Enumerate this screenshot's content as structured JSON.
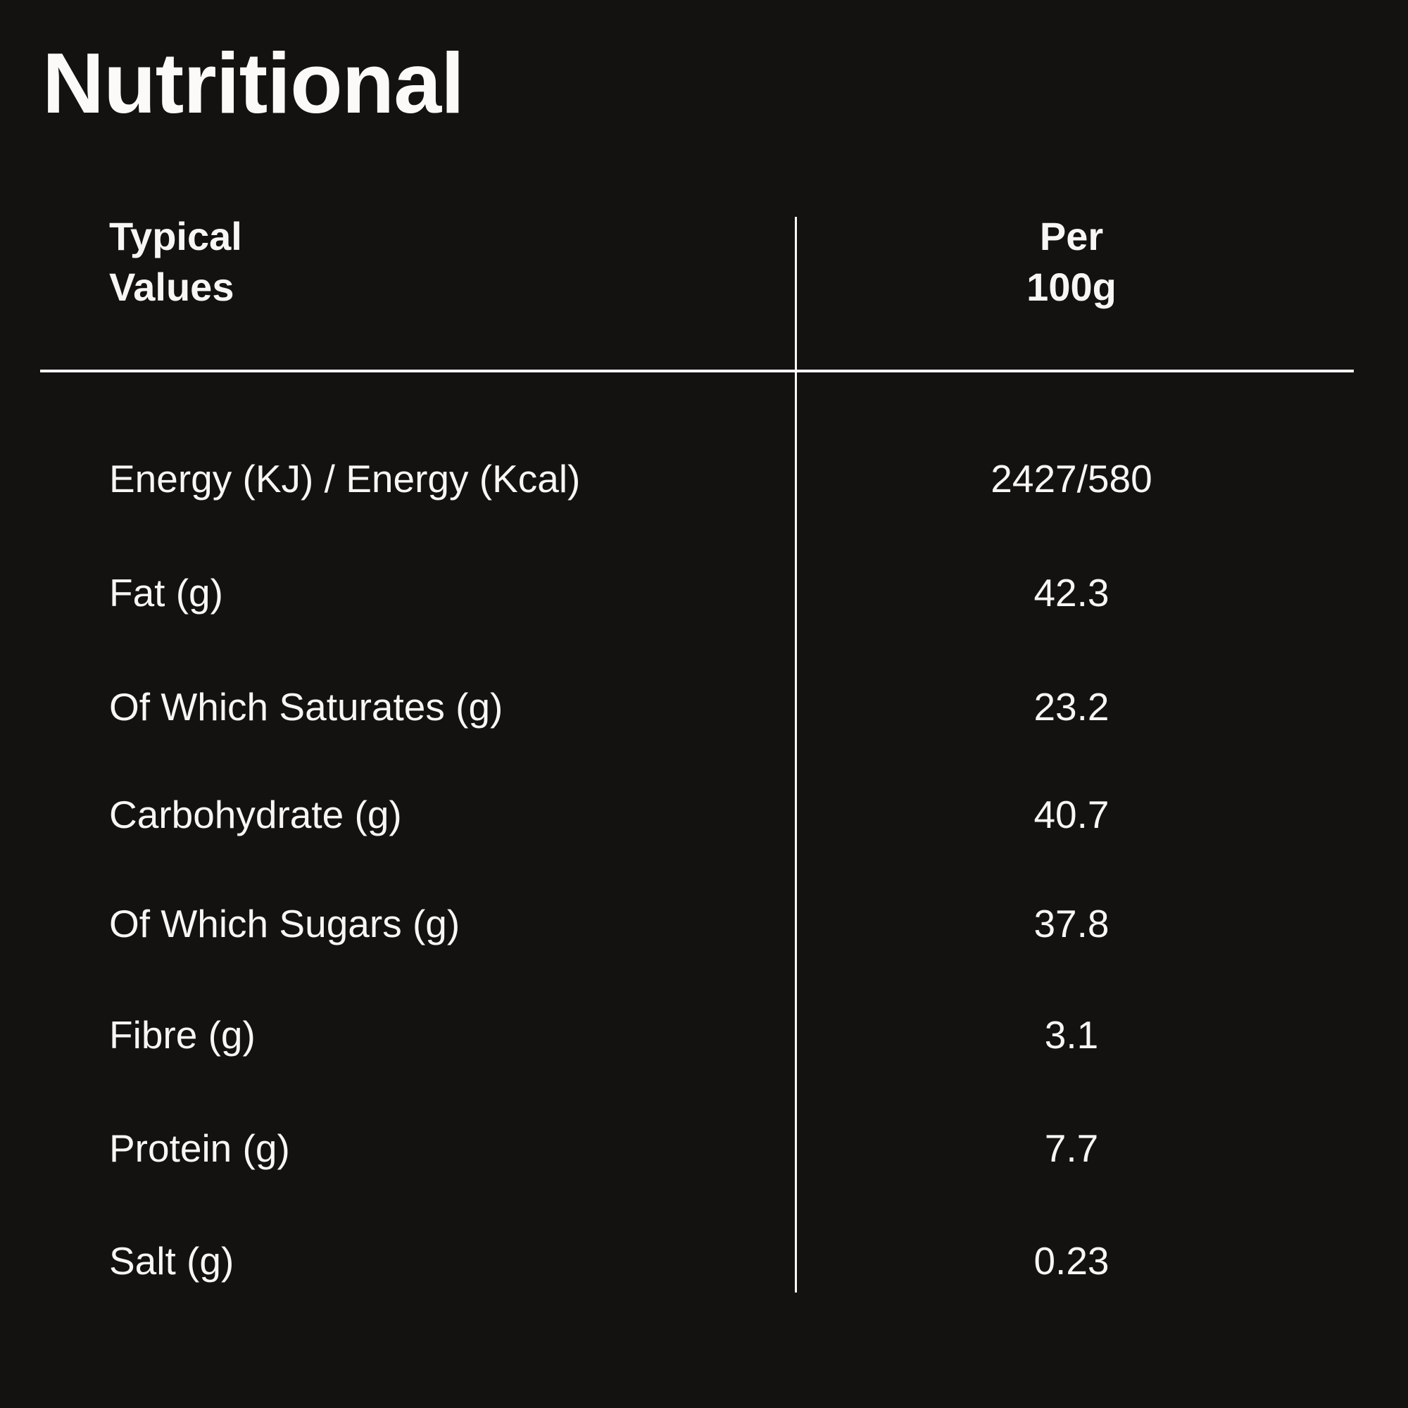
{
  "page": {
    "title": "Nutritional"
  },
  "table": {
    "header": {
      "typical": "Typical\nValues",
      "per": "Per\n100g"
    },
    "rows": [
      {
        "label": "Energy (KJ) / Energy (Kcal)",
        "value": "2427/580"
      },
      {
        "label": "Fat (g)",
        "value": "42.3"
      },
      {
        "label": "Of Which Saturates (g)",
        "value": "23.2"
      },
      {
        "label": "Carbohydrate (g)",
        "value": "40.7"
      },
      {
        "label": "Of Which Sugars (g)",
        "value": "37.8"
      },
      {
        "label": "Fibre (g)",
        "value": "3.1"
      },
      {
        "label": "Protein (g)",
        "value": "7.7"
      },
      {
        "label": "Salt (g)",
        "value": "0.23"
      }
    ]
  },
  "colors": {
    "background": "#131211",
    "text": "#f7f6f4",
    "rule": "#fcfcfc"
  }
}
